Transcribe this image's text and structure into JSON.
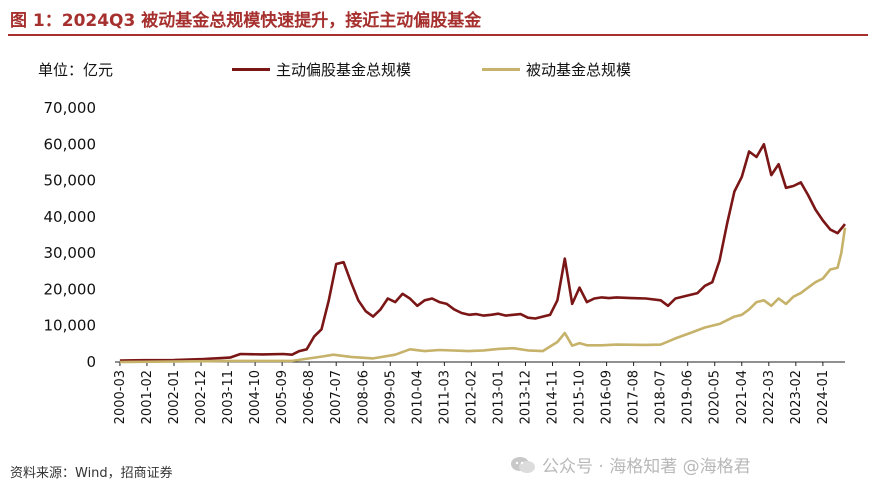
{
  "figure": {
    "title": "图 1：2024Q3 被动基金总规模快速提升，接近主动偏股基金",
    "unit_label": "单位：亿元",
    "source": "资料来源：Wind，招商证券",
    "watermark": "公众号 · 海格知著 @海格君"
  },
  "colors": {
    "active": "#7b1616",
    "passive": "#c6b26a",
    "accent": "#a5302e"
  },
  "chart_data": {
    "type": "line",
    "title": "2024Q3 被动基金总规模快速提升，接近主动偏股基金",
    "xlabel": "",
    "ylabel": "亿元",
    "ylim": [
      0,
      70000
    ],
    "yticks": [
      0,
      10000,
      20000,
      30000,
      40000,
      50000,
      60000,
      70000
    ],
    "ytick_labels": [
      "0",
      "10,000",
      "20,000",
      "30,000",
      "40,000",
      "50,000",
      "60,000",
      "70,000"
    ],
    "x_tick_labels": [
      "2000-03",
      "2001-02",
      "2002-01",
      "2002-12",
      "2003-11",
      "2004-10",
      "2005-09",
      "2006-08",
      "2007-07",
      "2008-06",
      "2009-05",
      "2010-04",
      "2011-03",
      "2012-02",
      "2013-01",
      "2013-12",
      "2014-11",
      "2015-10",
      "2016-09",
      "2017-08",
      "2018-07",
      "2019-06",
      "2020-05",
      "2021-04",
      "2022-03",
      "2023-02",
      "2024-01"
    ],
    "x_tick_positions": [
      2000.167,
      2001.083,
      2002.0,
      2002.917,
      2003.833,
      2004.75,
      2005.667,
      2006.583,
      2007.5,
      2008.417,
      2009.333,
      2010.25,
      2011.167,
      2012.083,
      2013.0,
      2013.917,
      2014.833,
      2015.75,
      2016.667,
      2017.583,
      2018.5,
      2019.417,
      2020.333,
      2021.25,
      2022.167,
      2023.083,
      2024.0
    ],
    "xlim": [
      2000.0,
      2024.75
    ],
    "legend": [
      "主动偏股基金总规模",
      "被动基金总规模"
    ],
    "legend_position": "top",
    "series": [
      {
        "name": "主动偏股基金总规模",
        "color": "#7b1616",
        "points": [
          [
            2000.167,
            400
          ],
          [
            2001.0,
            500
          ],
          [
            2002.0,
            550
          ],
          [
            2003.0,
            800
          ],
          [
            2003.9,
            1200
          ],
          [
            2004.25,
            2200
          ],
          [
            2005.0,
            2100
          ],
          [
            2005.7,
            2200
          ],
          [
            2006.0,
            2000
          ],
          [
            2006.25,
            3000
          ],
          [
            2006.5,
            3500
          ],
          [
            2006.75,
            7000
          ],
          [
            2007.0,
            9000
          ],
          [
            2007.25,
            17000
          ],
          [
            2007.5,
            27000
          ],
          [
            2007.75,
            27500
          ],
          [
            2008.0,
            22000
          ],
          [
            2008.25,
            17000
          ],
          [
            2008.5,
            14000
          ],
          [
            2008.75,
            12500
          ],
          [
            2009.0,
            14500
          ],
          [
            2009.25,
            17500
          ],
          [
            2009.5,
            16500
          ],
          [
            2009.75,
            18800
          ],
          [
            2010.0,
            17500
          ],
          [
            2010.25,
            15500
          ],
          [
            2010.5,
            17000
          ],
          [
            2010.75,
            17500
          ],
          [
            2011.0,
            16500
          ],
          [
            2011.25,
            16000
          ],
          [
            2011.5,
            14500
          ],
          [
            2011.75,
            13500
          ],
          [
            2012.0,
            13000
          ],
          [
            2012.25,
            13200
          ],
          [
            2012.5,
            12800
          ],
          [
            2012.75,
            13000
          ],
          [
            2013.0,
            13300
          ],
          [
            2013.25,
            12800
          ],
          [
            2013.5,
            13000
          ],
          [
            2013.75,
            13200
          ],
          [
            2014.0,
            12200
          ],
          [
            2014.25,
            12000
          ],
          [
            2014.5,
            12500
          ],
          [
            2014.75,
            13000
          ],
          [
            2015.0,
            17000
          ],
          [
            2015.25,
            28500
          ],
          [
            2015.5,
            16000
          ],
          [
            2015.75,
            20500
          ],
          [
            2016.0,
            16500
          ],
          [
            2016.25,
            17500
          ],
          [
            2016.5,
            17800
          ],
          [
            2016.75,
            17600
          ],
          [
            2017.0,
            17800
          ],
          [
            2017.5,
            17600
          ],
          [
            2018.0,
            17500
          ],
          [
            2018.5,
            17000
          ],
          [
            2018.75,
            15500
          ],
          [
            2019.0,
            17500
          ],
          [
            2019.5,
            18500
          ],
          [
            2019.75,
            19000
          ],
          [
            2020.0,
            21000
          ],
          [
            2020.25,
            22000
          ],
          [
            2020.5,
            28000
          ],
          [
            2020.75,
            38000
          ],
          [
            2021.0,
            47000
          ],
          [
            2021.25,
            51000
          ],
          [
            2021.5,
            58000
          ],
          [
            2021.75,
            56500
          ],
          [
            2022.0,
            60000
          ],
          [
            2022.25,
            51500
          ],
          [
            2022.5,
            54500
          ],
          [
            2022.75,
            48000
          ],
          [
            2023.0,
            48500
          ],
          [
            2023.25,
            49500
          ],
          [
            2023.5,
            46000
          ],
          [
            2023.75,
            42000
          ],
          [
            2024.0,
            39000
          ],
          [
            2024.25,
            36500
          ],
          [
            2024.5,
            35500
          ],
          [
            2024.75,
            38000
          ]
        ]
      },
      {
        "name": "被动基金总规模",
        "color": "#c6b26a",
        "points": [
          [
            2000.167,
            0
          ],
          [
            2004.0,
            300
          ],
          [
            2006.0,
            300
          ],
          [
            2007.0,
            1500
          ],
          [
            2007.4,
            2000
          ],
          [
            2008.0,
            1400
          ],
          [
            2008.75,
            1000
          ],
          [
            2009.5,
            2000
          ],
          [
            2010.0,
            3500
          ],
          [
            2010.5,
            3000
          ],
          [
            2011.0,
            3300
          ],
          [
            2012.0,
            3000
          ],
          [
            2012.5,
            3200
          ],
          [
            2013.0,
            3600
          ],
          [
            2013.5,
            3800
          ],
          [
            2014.0,
            3200
          ],
          [
            2014.5,
            3000
          ],
          [
            2015.0,
            5500
          ],
          [
            2015.25,
            8000
          ],
          [
            2015.5,
            4500
          ],
          [
            2015.75,
            5200
          ],
          [
            2016.0,
            4600
          ],
          [
            2016.5,
            4600
          ],
          [
            2017.0,
            4800
          ],
          [
            2018.0,
            4700
          ],
          [
            2018.5,
            4800
          ],
          [
            2019.0,
            6500
          ],
          [
            2019.5,
            8000
          ],
          [
            2020.0,
            9500
          ],
          [
            2020.5,
            10500
          ],
          [
            2021.0,
            12500
          ],
          [
            2021.25,
            13000
          ],
          [
            2021.5,
            14500
          ],
          [
            2021.75,
            16500
          ],
          [
            2022.0,
            17000
          ],
          [
            2022.25,
            15500
          ],
          [
            2022.5,
            17500
          ],
          [
            2022.75,
            16000
          ],
          [
            2023.0,
            18000
          ],
          [
            2023.25,
            19000
          ],
          [
            2023.5,
            20500
          ],
          [
            2023.75,
            22000
          ],
          [
            2024.0,
            23000
          ],
          [
            2024.25,
            25500
          ],
          [
            2024.5,
            26000
          ],
          [
            2024.625,
            30000
          ],
          [
            2024.75,
            37000
          ]
        ]
      }
    ]
  }
}
